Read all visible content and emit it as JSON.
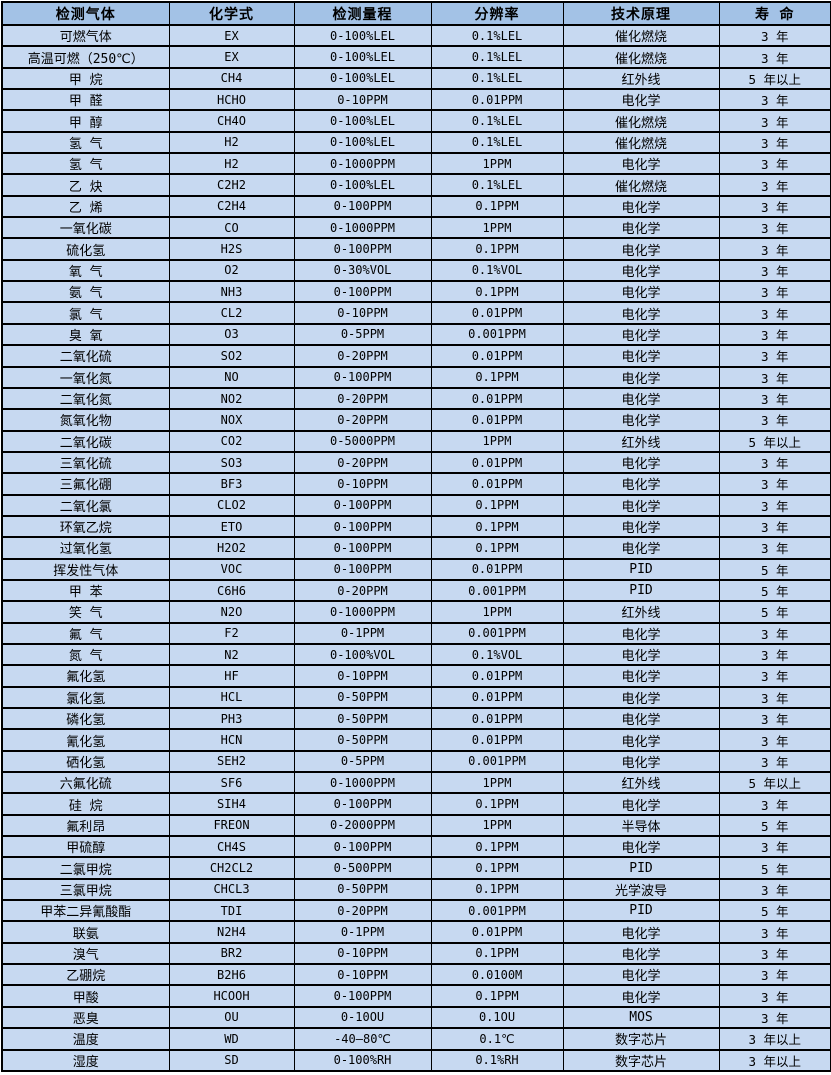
{
  "colors": {
    "header_bg": "#a3c2e6",
    "row_bg": "#c7d9f1",
    "border": "#000000",
    "text": "#000000"
  },
  "table": {
    "columns": [
      "检测气体",
      "化学式",
      "检测量程",
      "分辨率",
      "技术原理",
      "寿 命"
    ],
    "column_keys": [
      "gas",
      "formula",
      "range",
      "resolution",
      "principle",
      "lifespan"
    ],
    "rows": [
      [
        "可燃气体",
        "EX",
        "0-100%LEL",
        "0.1%LEL",
        "催化燃烧",
        "3 年"
      ],
      [
        "高温可燃（250℃）",
        "EX",
        "0-100%LEL",
        "0.1%LEL",
        "催化燃烧",
        "3 年"
      ],
      [
        "甲 烷",
        "CH4",
        "0-100%LEL",
        "0.1%LEL",
        "红外线",
        "5 年以上"
      ],
      [
        "甲 醛",
        "HCHO",
        "0-10PPM",
        "0.01PPM",
        "电化学",
        "3 年"
      ],
      [
        "甲 醇",
        "CH4O",
        "0-100%LEL",
        "0.1%LEL",
        "催化燃烧",
        "3 年"
      ],
      [
        "氢 气",
        "H2",
        "0-100%LEL",
        "0.1%LEL",
        "催化燃烧",
        "3 年"
      ],
      [
        "氢 气",
        "H2",
        "0-1000PPM",
        "1PPM",
        "电化学",
        "3 年"
      ],
      [
        "乙 炔",
        "C2H2",
        "0-100%LEL",
        "0.1%LEL",
        "催化燃烧",
        "3 年"
      ],
      [
        "乙 烯",
        "C2H4",
        "0-100PPM",
        "0.1PPM",
        "电化学",
        "3 年"
      ],
      [
        "一氧化碳",
        "CO",
        "0-1000PPM",
        "1PPM",
        "电化学",
        "3 年"
      ],
      [
        "硫化氢",
        "H2S",
        "0-100PPM",
        "0.1PPM",
        "电化学",
        "3 年"
      ],
      [
        "氧 气",
        "O2",
        "0-30%VOL",
        "0.1%VOL",
        "电化学",
        "3 年"
      ],
      [
        "氨 气",
        "NH3",
        "0-100PPM",
        "0.1PPM",
        "电化学",
        "3 年"
      ],
      [
        "氯 气",
        "CL2",
        "0-10PPM",
        "0.01PPM",
        "电化学",
        "3 年"
      ],
      [
        "臭 氧",
        "O3",
        "0-5PPM",
        "0.001PPM",
        "电化学",
        "3 年"
      ],
      [
        "二氧化硫",
        "SO2",
        "0-20PPM",
        "0.01PPM",
        "电化学",
        "3 年"
      ],
      [
        "一氧化氮",
        "NO",
        "0-100PPM",
        "0.1PPM",
        "电化学",
        "3 年"
      ],
      [
        "二氧化氮",
        "NO2",
        "0-20PPM",
        "0.01PPM",
        "电化学",
        "3 年"
      ],
      [
        "氮氧化物",
        "NOX",
        "0-20PPM",
        "0.01PPM",
        "电化学",
        "3 年"
      ],
      [
        "二氧化碳",
        "CO2",
        "0-5000PPM",
        "1PPM",
        "红外线",
        "5 年以上"
      ],
      [
        "三氧化硫",
        "SO3",
        "0-20PPM",
        "0.01PPM",
        "电化学",
        "3 年"
      ],
      [
        "三氟化硼",
        "BF3",
        "0-10PPM",
        "0.01PPM",
        "电化学",
        "3 年"
      ],
      [
        "二氧化氯",
        "CLO2",
        "0-100PPM",
        "0.1PPM",
        "电化学",
        "3 年"
      ],
      [
        "环氧乙烷",
        "ETO",
        "0-100PPM",
        "0.1PPM",
        "电化学",
        "3 年"
      ],
      [
        "过氧化氢",
        "H2O2",
        "0-100PPM",
        "0.1PPM",
        "电化学",
        "3 年"
      ],
      [
        "挥发性气体",
        "VOC",
        "0-100PPM",
        "0.01PPM",
        "PID",
        "5 年"
      ],
      [
        "甲 苯",
        "C6H6",
        "0-20PPM",
        "0.001PPM",
        "PID",
        "5 年"
      ],
      [
        "笑 气",
        "N2O",
        "0-1000PPM",
        "1PPM",
        "红外线",
        "5 年"
      ],
      [
        "氟 气",
        "F2",
        "0-1PPM",
        "0.001PPM",
        "电化学",
        "3 年"
      ],
      [
        "氮 气",
        "N2",
        "0-100%VOL",
        "0.1%VOL",
        "电化学",
        "3 年"
      ],
      [
        "氟化氢",
        "HF",
        "0-10PPM",
        "0.01PPM",
        "电化学",
        "3 年"
      ],
      [
        "氯化氢",
        "HCL",
        "0-50PPM",
        "0.01PPM",
        "电化学",
        "3 年"
      ],
      [
        "磷化氢",
        "PH3",
        "0-50PPM",
        "0.01PPM",
        "电化学",
        "3 年"
      ],
      [
        "氰化氢",
        "HCN",
        "0-50PPM",
        "0.01PPM",
        "电化学",
        "3 年"
      ],
      [
        "硒化氢",
        "SEH2",
        "0-5PPM",
        "0.001PPM",
        "电化学",
        "3 年"
      ],
      [
        "六氟化硫",
        "SF6",
        "0-1000PPM",
        "1PPM",
        "红外线",
        "5 年以上"
      ],
      [
        "硅 烷",
        "SIH4",
        "0-100PPM",
        "0.1PPM",
        "电化学",
        "3 年"
      ],
      [
        "氟利昂",
        "FREON",
        "0-2000PPM",
        "1PPM",
        "半导体",
        "5 年"
      ],
      [
        "甲硫醇",
        "CH4S",
        "0-100PPM",
        "0.1PPM",
        "电化学",
        "3 年"
      ],
      [
        "二氯甲烷",
        "CH2CL2",
        "0-500PPM",
        "0.1PPM",
        "PID",
        "5 年"
      ],
      [
        "三氯甲烷",
        "CHCL3",
        "0-50PPM",
        "0.1PPM",
        "光学波导",
        "3 年"
      ],
      [
        "甲苯二异氰酸酯",
        "TDI",
        "0-20PPM",
        "0.001PPM",
        "PID",
        "5 年"
      ],
      [
        "联氨",
        "N2H4",
        "0-1PPM",
        "0.01PPM",
        "电化学",
        "3 年"
      ],
      [
        "溴气",
        "BR2",
        "0-10PPM",
        "0.1PPM",
        "电化学",
        "3 年"
      ],
      [
        "乙硼烷",
        "B2H6",
        "0-10PPM",
        "0.0100M",
        "电化学",
        "3 年"
      ],
      [
        "甲酸",
        "HCOOH",
        "0-100PPM",
        "0.1PPM",
        "电化学",
        "3 年"
      ],
      [
        "恶臭",
        "OU",
        "0-10OU",
        "0.1OU",
        "MOS",
        "3 年"
      ],
      [
        "温度",
        "WD",
        "-40—80℃",
        "0.1℃",
        "数字芯片",
        "3 年以上"
      ],
      [
        "湿度",
        "SD",
        "0-100%RH",
        "0.1%RH",
        "数字芯片",
        "3 年以上"
      ]
    ]
  }
}
